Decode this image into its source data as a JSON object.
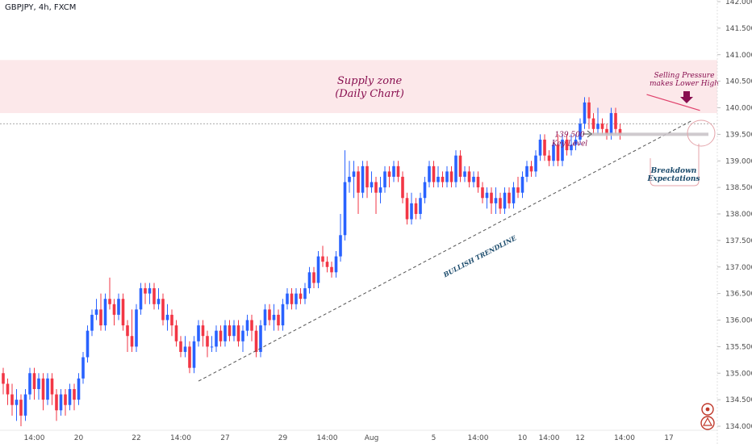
{
  "header": {
    "symbol": "GBPJPY, 4h, FXCM"
  },
  "colors": {
    "bull": "#2962ff",
    "bear": "#f23645",
    "supply": "#fce8ea",
    "annotation": "#880e4f",
    "breakdown": "#1a4a6b",
    "trendline": "#555555"
  },
  "chart_data": {
    "type": "candlestick",
    "symbol": "GBPJPY",
    "timeframe": "4h",
    "ylim": [
      134.0,
      142.0
    ],
    "y_ticks": [
      134.0,
      134.5,
      135.0,
      135.5,
      136.0,
      136.5,
      137.0,
      137.5,
      138.0,
      138.5,
      139.0,
      139.5,
      140.0,
      140.5,
      141.0,
      141.5,
      142.0
    ],
    "y_tick_labels": [
      "134.000",
      "134.500",
      "135.000",
      "135.500",
      "136.000",
      "136.500",
      "137.000",
      "137.500",
      "138.000",
      "138.500",
      "139.000",
      "139.500",
      "140.000",
      "140.500",
      "141.000",
      "141.500",
      "142.000"
    ],
    "x_tick_labels": [
      {
        "i": 7,
        "label": "14:00"
      },
      {
        "i": 17,
        "label": "20"
      },
      {
        "i": 30,
        "label": "22"
      },
      {
        "i": 40,
        "label": "14:00"
      },
      {
        "i": 50,
        "label": "27"
      },
      {
        "i": 63,
        "label": "29"
      },
      {
        "i": 73,
        "label": "14:00"
      },
      {
        "i": 83,
        "label": "Aug"
      },
      {
        "i": 97,
        "label": "5"
      },
      {
        "i": 107,
        "label": "14:00"
      },
      {
        "i": 117,
        "label": "10"
      },
      {
        "i": 123,
        "label": "14:00"
      },
      {
        "i": 130,
        "label": "12"
      },
      {
        "i": 140,
        "label": "14:00"
      },
      {
        "i": 150,
        "label": "17"
      }
    ],
    "candles": [
      [
        135.0,
        134.8,
        135.1,
        134.6
      ],
      [
        134.8,
        134.6,
        134.9,
        134.4
      ],
      [
        134.6,
        134.4,
        134.8,
        134.2
      ],
      [
        134.4,
        134.5,
        134.7,
        134.1
      ],
      [
        134.5,
        134.2,
        134.6,
        134.0
      ],
      [
        134.2,
        134.6,
        134.7,
        134.1
      ],
      [
        134.6,
        135.0,
        135.1,
        134.5
      ],
      [
        135.0,
        134.7,
        135.1,
        134.5
      ],
      [
        134.7,
        134.9,
        135.0,
        134.5
      ],
      [
        134.9,
        134.5,
        135.0,
        134.3
      ],
      [
        134.5,
        134.9,
        135.0,
        134.4
      ],
      [
        134.9,
        134.6,
        135.0,
        134.4
      ],
      [
        134.6,
        134.3,
        134.7,
        134.1
      ],
      [
        134.3,
        134.6,
        134.7,
        134.2
      ],
      [
        134.6,
        134.4,
        134.7,
        134.2
      ],
      [
        134.4,
        134.7,
        134.8,
        134.3
      ],
      [
        134.7,
        134.5,
        134.8,
        134.3
      ],
      [
        134.5,
        134.9,
        135.0,
        134.4
      ],
      [
        134.9,
        135.3,
        135.4,
        134.8
      ],
      [
        135.3,
        135.8,
        135.9,
        135.2
      ],
      [
        135.8,
        136.1,
        136.2,
        135.7
      ],
      [
        136.1,
        136.2,
        136.4,
        136.0
      ],
      [
        136.2,
        135.9,
        136.5,
        135.8
      ],
      [
        135.9,
        136.4,
        136.5,
        135.8
      ],
      [
        136.4,
        136.3,
        136.8,
        136.2
      ],
      [
        136.3,
        136.1,
        136.4,
        135.9
      ],
      [
        136.1,
        136.4,
        136.5,
        136.0
      ],
      [
        136.4,
        135.9,
        136.5,
        135.8
      ],
      [
        135.9,
        135.7,
        136.0,
        135.4
      ],
      [
        135.7,
        135.5,
        136.2,
        135.4
      ],
      [
        135.5,
        136.2,
        136.3,
        135.4
      ],
      [
        136.2,
        136.6,
        136.7,
        136.1
      ],
      [
        136.6,
        136.5,
        136.7,
        136.3
      ],
      [
        136.5,
        136.6,
        136.7,
        136.3
      ],
      [
        136.6,
        136.3,
        136.7,
        136.2
      ],
      [
        136.3,
        136.4,
        136.6,
        136.2
      ],
      [
        136.4,
        136.0,
        136.5,
        135.9
      ],
      [
        136.0,
        136.1,
        136.3,
        135.8
      ],
      [
        136.1,
        135.9,
        136.2,
        135.7
      ],
      [
        135.9,
        135.6,
        136.0,
        135.5
      ],
      [
        135.6,
        135.4,
        135.7,
        135.3
      ],
      [
        135.4,
        135.5,
        135.7,
        135.3
      ],
      [
        135.5,
        135.1,
        135.6,
        135.0
      ],
      [
        135.1,
        135.6,
        135.7,
        135.0
      ],
      [
        135.6,
        135.9,
        136.0,
        135.5
      ],
      [
        135.9,
        135.7,
        136.0,
        135.5
      ],
      [
        135.7,
        135.5,
        135.8,
        135.3
      ],
      [
        135.5,
        135.5,
        135.7,
        135.4
      ],
      [
        135.5,
        135.8,
        135.9,
        135.4
      ],
      [
        135.8,
        135.6,
        135.9,
        135.5
      ],
      [
        135.6,
        135.9,
        136.0,
        135.5
      ],
      [
        135.9,
        135.7,
        136.0,
        135.6
      ],
      [
        135.7,
        135.9,
        136.0,
        135.6
      ],
      [
        135.9,
        135.6,
        136.0,
        135.5
      ],
      [
        135.6,
        135.8,
        135.9,
        135.4
      ],
      [
        135.8,
        136.0,
        136.1,
        135.7
      ],
      [
        136.0,
        135.8,
        136.1,
        135.6
      ],
      [
        135.8,
        135.4,
        135.9,
        135.3
      ],
      [
        135.4,
        135.9,
        136.0,
        135.3
      ],
      [
        135.9,
        136.2,
        136.3,
        135.8
      ],
      [
        136.2,
        136.0,
        136.3,
        135.9
      ],
      [
        136.0,
        136.1,
        136.3,
        135.8
      ],
      [
        136.1,
        135.9,
        136.2,
        135.8
      ],
      [
        135.9,
        136.3,
        136.4,
        135.8
      ],
      [
        136.3,
        136.5,
        136.6,
        136.2
      ],
      [
        136.5,
        136.3,
        136.6,
        136.2
      ],
      [
        136.3,
        136.5,
        136.6,
        136.2
      ],
      [
        136.5,
        136.4,
        136.6,
        136.3
      ],
      [
        136.4,
        136.6,
        136.7,
        136.3
      ],
      [
        136.6,
        136.9,
        137.0,
        136.5
      ],
      [
        136.9,
        136.7,
        137.0,
        136.6
      ],
      [
        136.7,
        137.2,
        137.3,
        136.6
      ],
      [
        137.2,
        137.1,
        137.4,
        137.0
      ],
      [
        137.1,
        137.0,
        137.2,
        136.9
      ],
      [
        137.0,
        136.9,
        137.1,
        136.8
      ],
      [
        136.9,
        137.2,
        137.3,
        136.8
      ],
      [
        137.2,
        137.6,
        138.0,
        137.1
      ],
      [
        137.6,
        138.6,
        139.2,
        137.5
      ],
      [
        138.6,
        138.7,
        139.0,
        138.4
      ],
      [
        138.7,
        138.8,
        139.0,
        138.3
      ],
      [
        138.8,
        138.4,
        138.9,
        138.0
      ],
      [
        138.4,
        138.9,
        139.0,
        138.3
      ],
      [
        138.9,
        138.5,
        139.0,
        138.3
      ],
      [
        138.5,
        138.6,
        138.8,
        138.4
      ],
      [
        138.6,
        138.4,
        138.7,
        138.0
      ],
      [
        138.4,
        138.5,
        138.7,
        138.2
      ],
      [
        138.5,
        138.8,
        138.9,
        138.4
      ],
      [
        138.8,
        138.7,
        138.9,
        138.5
      ],
      [
        138.7,
        138.9,
        139.0,
        138.6
      ],
      [
        138.9,
        138.7,
        139.0,
        138.6
      ],
      [
        138.7,
        138.3,
        138.8,
        138.2
      ],
      [
        138.3,
        137.9,
        138.4,
        137.8
      ],
      [
        137.9,
        138.2,
        138.4,
        137.8
      ],
      [
        138.2,
        138.0,
        138.3,
        137.9
      ],
      [
        138.0,
        138.3,
        138.4,
        137.9
      ],
      [
        138.3,
        138.6,
        138.7,
        138.2
      ],
      [
        138.6,
        138.9,
        139.0,
        138.5
      ],
      [
        138.9,
        138.6,
        139.0,
        138.5
      ],
      [
        138.6,
        138.7,
        138.9,
        138.5
      ],
      [
        138.7,
        138.6,
        138.8,
        138.5
      ],
      [
        138.6,
        138.8,
        138.9,
        138.5
      ],
      [
        138.8,
        138.6,
        138.9,
        138.5
      ],
      [
        138.6,
        139.1,
        139.2,
        138.5
      ],
      [
        139.1,
        138.7,
        139.2,
        138.6
      ],
      [
        138.7,
        138.8,
        138.9,
        138.6
      ],
      [
        138.8,
        138.6,
        138.9,
        138.5
      ],
      [
        138.6,
        138.7,
        138.8,
        138.5
      ],
      [
        138.7,
        138.5,
        138.8,
        138.4
      ],
      [
        138.5,
        138.3,
        138.6,
        138.2
      ],
      [
        138.3,
        138.4,
        138.5,
        138.1
      ],
      [
        138.4,
        138.2,
        138.5,
        138.0
      ],
      [
        138.2,
        138.3,
        138.5,
        138.0
      ],
      [
        138.3,
        138.1,
        138.4,
        138.0
      ],
      [
        138.1,
        138.4,
        138.5,
        138.0
      ],
      [
        138.4,
        138.2,
        138.5,
        138.1
      ],
      [
        138.2,
        138.5,
        138.6,
        138.1
      ],
      [
        138.5,
        138.4,
        138.7,
        138.3
      ],
      [
        138.4,
        138.7,
        138.8,
        138.3
      ],
      [
        138.7,
        138.9,
        139.0,
        138.6
      ],
      [
        138.9,
        138.8,
        139.0,
        138.7
      ],
      [
        138.8,
        139.1,
        139.2,
        138.7
      ],
      [
        139.1,
        139.4,
        139.5,
        139.0
      ],
      [
        139.4,
        139.1,
        139.5,
        139.0
      ],
      [
        139.1,
        139.0,
        139.2,
        138.9
      ],
      [
        139.0,
        139.3,
        139.4,
        138.9
      ],
      [
        139.3,
        139.0,
        139.5,
        138.9
      ],
      [
        139.0,
        139.4,
        139.5,
        138.9
      ],
      [
        139.4,
        139.2,
        139.5,
        139.1
      ],
      [
        139.2,
        139.3,
        139.5,
        139.1
      ],
      [
        139.3,
        139.4,
        139.5,
        139.2
      ],
      [
        139.4,
        139.7,
        139.8,
        139.3
      ],
      [
        139.7,
        140.1,
        140.2,
        139.6
      ],
      [
        140.1,
        139.8,
        140.2,
        139.6
      ],
      [
        139.8,
        139.6,
        139.9,
        139.5
      ],
      [
        139.6,
        139.7,
        140.0,
        139.5
      ],
      [
        139.7,
        139.6,
        139.8,
        139.5
      ],
      [
        139.6,
        139.5,
        139.7,
        139.4
      ],
      [
        139.5,
        139.9,
        140.0,
        139.4
      ],
      [
        139.9,
        139.6,
        140.0,
        139.5
      ],
      [
        139.6,
        139.5,
        139.7,
        139.4
      ]
    ],
    "zones": [
      {
        "label_line1": "Supply zone",
        "label_line2": "(Daily Chart)",
        "y_from": 139.9,
        "y_to": 140.9
      }
    ],
    "dotted_level": 139.7,
    "key_level": {
      "value": 139.5,
      "label_line1": "139.500",
      "label_line2": "Key Level"
    },
    "trendline": {
      "label": "BULLISH TRENDLINE",
      "from": {
        "i": 44,
        "y": 134.85
      },
      "to": {
        "i": 155,
        "y": 139.75
      }
    },
    "resistance_line": {
      "from": {
        "i": 145,
        "y": 140.25
      },
      "to": {
        "i": 157,
        "y": 139.95
      }
    },
    "annotations": [
      {
        "line1": "Selling Pressure",
        "line2": "makes Lower High"
      },
      {
        "line1": "Breakdown",
        "line2": "Expectations"
      }
    ]
  }
}
